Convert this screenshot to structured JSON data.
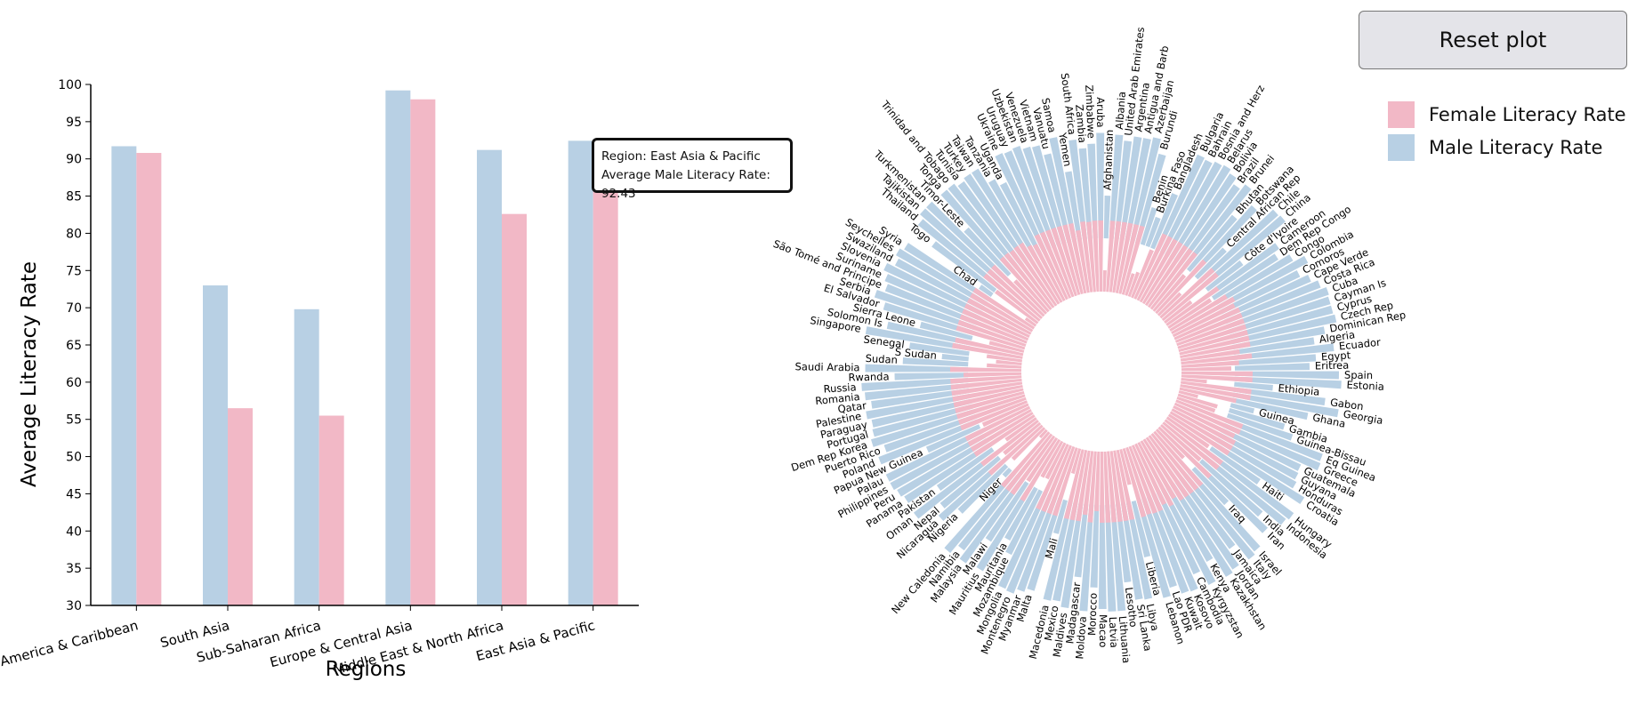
{
  "reset_button": {
    "label": "Reset plot"
  },
  "legend": {
    "female": {
      "label": "Female Literacy Rate",
      "color": "#f2b8c6"
    },
    "male": {
      "label": "Male Literacy Rate",
      "color": "#b8d0e4"
    }
  },
  "tooltip": {
    "region_line": "Region: East Asia & Pacific",
    "value_line": "Average Male Literacy Rate: 92.43"
  },
  "chart_data": [
    {
      "type": "bar",
      "xlabel": "Regions",
      "ylabel": "Average Literacy Rate",
      "ylim": [
        30,
        100
      ],
      "yticks": [
        30,
        35,
        40,
        45,
        50,
        55,
        60,
        65,
        70,
        75,
        80,
        85,
        90,
        95,
        100
      ],
      "categories": [
        "Latin America & Caribbean",
        "South Asia",
        "Sub-Saharan Africa",
        "Europe & Central Asia",
        "Middle East & North Africa",
        "East Asia & Pacific"
      ],
      "series": [
        {
          "name": "Male Literacy Rate",
          "color": "#b8d0e4",
          "values": [
            91.7,
            73.0,
            69.8,
            99.2,
            91.2,
            92.43
          ]
        },
        {
          "name": "Female Literacy Rate",
          "color": "#f2b8c6",
          "values": [
            90.8,
            56.5,
            55.5,
            98.0,
            82.6,
            88.0
          ]
        }
      ]
    },
    {
      "type": "bar",
      "subtype": "radial",
      "categories": [
        "Afghanistan",
        "Albania",
        "United Arab Emirates",
        "Argentina",
        "Antigua and Barb",
        "Azerbaijan",
        "Burundi",
        "Benin",
        "Burkina Faso",
        "Bangladesh",
        "Bulgaria",
        "Bahrain",
        "Bosnia and Herz",
        "Belarus",
        "Bolivia",
        "Brazil",
        "Brunei",
        "Bhutan",
        "Botswana",
        "Central African Rep",
        "Chile",
        "China",
        "Côte d'Ivoire",
        "Cameroon",
        "Dem Rep Congo",
        "Congo",
        "Colombia",
        "Comoros",
        "Cape Verde",
        "Costa Rica",
        "Cuba",
        "Cayman Is",
        "Cyprus",
        "Czech Rep",
        "Dominican Rep",
        "Algeria",
        "Ecuador",
        "Egypt",
        "Eritrea",
        "Spain",
        "Estonia",
        "Ethiopia",
        "Gabon",
        "Georgia",
        "Ghana",
        "Guinea",
        "Gambia",
        "Guinea-Bissau",
        "Eq Guinea",
        "Greece",
        "Guatemala",
        "Guyana",
        "Honduras",
        "Croatia",
        "Haiti",
        "Hungary",
        "Indonesia",
        "India",
        "Iran",
        "Iraq",
        "Israel",
        "Italy",
        "Jamaica",
        "Jordan",
        "Kazakhstan",
        "Kenya",
        "Kyrgyzstan",
        "Cambodia",
        "Kosovo",
        "Kuwait",
        "Lao PDR",
        "Lebanon",
        "Liberia",
        "Libya",
        "Sri Lanka",
        "Lesotho",
        "Lithuania",
        "Latvia",
        "Macao",
        "Morocco",
        "Moldova",
        "Madagascar",
        "Maldives",
        "Mexico",
        "Macedonia",
        "Mali",
        "Malta",
        "Myanmar",
        "Montenegro",
        "Mongolia",
        "Mozambique",
        "Mauritania",
        "Mauritius",
        "Malawi",
        "Malaysia",
        "Namibia",
        "New Caledonia",
        "Niger",
        "Nigeria",
        "Nicaragua",
        "Nepal",
        "Oman",
        "Pakistan",
        "Panama",
        "Peru",
        "Philippines",
        "Palau",
        "Papua New Guinea",
        "Poland",
        "Puerto Rico",
        "Dem Rep Korea",
        "Portugal",
        "Paraguay",
        "Palestine",
        "Qatar",
        "Romania",
        "Russia",
        "Rwanda",
        "Saudi Arabia",
        "Sudan",
        "S Sudan",
        "Senegal",
        "Singapore",
        "Solomon Is",
        "Sierra Leone",
        "El Salvador",
        "Serbia",
        "São Tomé and Principe",
        "Suriname",
        "Slovenia",
        "Swaziland",
        "Seychelles",
        "Syria",
        "Chad",
        "Togo",
        "Thailand",
        "Tajikistan",
        "Turkmenistan",
        "Timor-Leste",
        "Tonga",
        "Trinidad and Tobago",
        "Tunisia",
        "Turkey",
        "Taiwan",
        "Tanzania",
        "Uganda",
        "Ukraine",
        "Uruguay",
        "Uzbekistan",
        "Venezuela",
        "Vietnam",
        "Vanuatu",
        "Samoa",
        "Yemen",
        "South Africa",
        "Zambia",
        "Zimbabwe",
        "Aruba"
      ],
      "series": [
        {
          "name": "Male Literacy Rate",
          "color": "#b8d0e4",
          "values": [
            52,
            98,
            94,
            98,
            98,
            100,
            89,
            49,
            43,
            64,
            98,
            97,
            99,
            100,
            97,
            92,
            97,
            73,
            88,
            50,
            97,
            98,
            53,
            82,
            77,
            86,
            95,
            85,
            91,
            96,
            100,
            99,
            99,
            100,
            90,
            81,
            95,
            81,
            76,
            98,
            100,
            49,
            89,
            100,
            78,
            38,
            63,
            71,
            97,
            98,
            85,
            86,
            88,
            99,
            64,
            99,
            97,
            80,
            91,
            56,
            97,
            99,
            84,
            98,
            100,
            83,
            99,
            87,
            98,
            97,
            90,
            96,
            63,
            94,
            93,
            79,
            100,
            100,
            98,
            82,
            100,
            75,
            99,
            95,
            96,
            46,
            92,
            95,
            99,
            98,
            73,
            64,
            94,
            72,
            96,
            89,
            97,
            27,
            69,
            83,
            76,
            96,
            70,
            95,
            97,
            99,
            99,
            63,
            99,
            92,
            100,
            97,
            96,
            99,
            94,
            98,
            100,
            75,
            97,
            69,
            40,
            65,
            99,
            84,
            60,
            90,
            99,
            93,
            96,
            100,
            94,
            97,
            94,
            31,
            78,
            96,
            100,
            100,
            67,
            99,
            99,
            96,
            98,
            98,
            85,
            79,
            100,
            99,
            100,
            97,
            96,
            88,
            99,
            72,
            95,
            88,
            91,
            99
          ]
        },
        {
          "name": "Female Literacy Rate",
          "color": "#f2b8c6",
          "values": [
            24,
            96,
            97,
            98,
            99,
            99,
            82,
            26,
            29,
            58,
            98,
            93,
            96,
            100,
            90,
            92,
            95,
            53,
            89,
            35,
            97,
            93,
            38,
            71,
            57,
            74,
            95,
            77,
            83,
            98,
            100,
            99,
            98,
            100,
            92,
            67,
            93,
            65,
            56,
            97,
            100,
            29,
            82,
            100,
            65,
            22,
            46,
            45,
            92,
            97,
            76,
            89,
            89,
            98,
            57,
            99,
            93,
            59,
            82,
            44,
            95,
            99,
            93,
            95,
            100,
            74,
            99,
            75,
            92,
            95,
            79,
            91,
            41,
            82,
            91,
            95,
            100,
            100,
            96,
            67,
            99,
            72,
            98,
            94,
            93,
            29,
            94,
            89,
            98,
            98,
            45,
            46,
            92,
            58,
            93,
            88,
            95,
            11,
            50,
            82,
            53,
            92,
            42,
            95,
            94,
            97,
            98,
            56,
            99,
            87,
            100,
            95,
            93,
            95,
            94,
            98,
            100,
            65,
            91,
            39,
            29,
            40,
            96,
            78,
            40,
            86,
            99,
            86,
            93,
            100,
            80,
            96,
            89,
            14,
            59,
            92,
            100,
            100,
            51,
            99,
            99,
            79,
            92,
            95,
            73,
            71,
            100,
            99,
            100,
            96,
            93,
            93,
            100,
            71,
            94,
            79,
            85,
            100
          ]
        }
      ]
    }
  ]
}
